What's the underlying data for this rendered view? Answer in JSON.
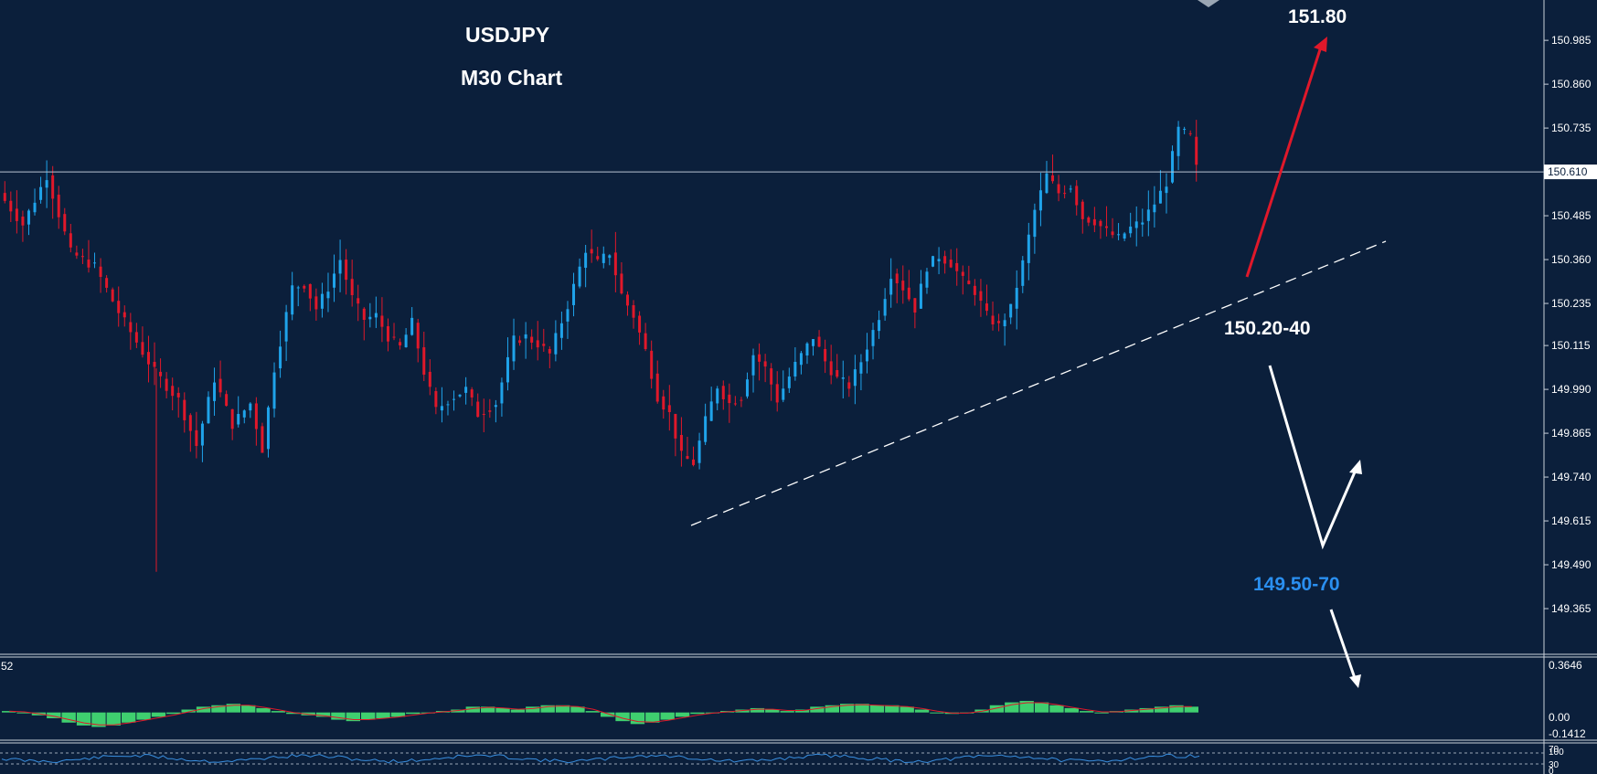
{
  "chart_data": {
    "type": "candlestick",
    "symbol": "USDJPY",
    "title": "USDJPY",
    "subtitle": "M30 Chart",
    "ylim": [
      149.24,
      151.1
    ],
    "price_axis_ticks": [
      "150.985",
      "150.860",
      "150.735",
      "150.485",
      "150.360",
      "150.235",
      "150.115",
      "149.990",
      "149.865",
      "149.740",
      "149.615",
      "149.490",
      "149.365"
    ],
    "current_price": "150.610",
    "current_price_value": 150.61,
    "annotations": {
      "target_up": "151.80",
      "support_zone": "150.20-40",
      "lower_zone": "149.50-70"
    },
    "colors": {
      "background": "#0b1f3b",
      "up": "#1fa3ea",
      "down": "#e0182a",
      "target_up_color": "#ffffff",
      "support_color": "#ffffff",
      "lower_color": "#2a8ff0",
      "red_arrow": "#e0182a",
      "white_arrow": "#ffffff",
      "histogram": "#3fcf6f",
      "signal": "#e0182a",
      "rsi_line": "#3a8fe0"
    },
    "price_path": [
      [
        0,
        150.55
      ],
      [
        4,
        150.46
      ],
      [
        8,
        150.6
      ],
      [
        12,
        150.38
      ],
      [
        16,
        150.34
      ],
      [
        20,
        150.21
      ],
      [
        26,
        150.04
      ],
      [
        30,
        149.96
      ],
      [
        33,
        149.83
      ],
      [
        36,
        150.02
      ],
      [
        39,
        149.89
      ],
      [
        42,
        149.95
      ],
      [
        44,
        149.82
      ],
      [
        46,
        150.05
      ],
      [
        49,
        150.28
      ],
      [
        51,
        150.29
      ],
      [
        53,
        150.22
      ],
      [
        55,
        150.28
      ],
      [
        57,
        150.36
      ],
      [
        59,
        150.25
      ],
      [
        61,
        150.19
      ],
      [
        63,
        150.2
      ],
      [
        65,
        150.14
      ],
      [
        67,
        150.11
      ],
      [
        69,
        150.18
      ],
      [
        71,
        150.04
      ],
      [
        73,
        149.93
      ],
      [
        75,
        149.96
      ],
      [
        78,
        149.99
      ],
      [
        80,
        149.92
      ],
      [
        83,
        149.95
      ],
      [
        86,
        150.13
      ],
      [
        88,
        150.14
      ],
      [
        90,
        150.12
      ],
      [
        92,
        150.09
      ],
      [
        95,
        150.23
      ],
      [
        98,
        150.39
      ],
      [
        100,
        150.35
      ],
      [
        102,
        150.38
      ],
      [
        104,
        150.26
      ],
      [
        106,
        150.2
      ],
      [
        108,
        150.1
      ],
      [
        110,
        149.97
      ],
      [
        112,
        149.92
      ],
      [
        114,
        149.8
      ],
      [
        116,
        149.78
      ],
      [
        118,
        149.9
      ],
      [
        120,
        150.0
      ],
      [
        122,
        149.95
      ],
      [
        124,
        149.97
      ],
      [
        126,
        150.09
      ],
      [
        128,
        150.05
      ],
      [
        130,
        149.96
      ],
      [
        133,
        150.06
      ],
      [
        136,
        150.14
      ],
      [
        138,
        150.07
      ],
      [
        140,
        150.02
      ],
      [
        142,
        150.0
      ],
      [
        144,
        150.07
      ],
      [
        147,
        150.2
      ],
      [
        149,
        150.32
      ],
      [
        151,
        150.28
      ],
      [
        153,
        150.22
      ],
      [
        155,
        150.34
      ],
      [
        157,
        150.37
      ],
      [
        159,
        150.35
      ],
      [
        161,
        150.3
      ],
      [
        163,
        150.27
      ],
      [
        165,
        150.2
      ],
      [
        167,
        150.17
      ],
      [
        169,
        150.22
      ],
      [
        171,
        150.35
      ],
      [
        173,
        150.5
      ],
      [
        175,
        150.6
      ],
      [
        177,
        150.55
      ],
      [
        179,
        150.57
      ],
      [
        181,
        150.48
      ],
      [
        183,
        150.47
      ],
      [
        185,
        150.44
      ],
      [
        187,
        150.42
      ],
      [
        189,
        150.45
      ],
      [
        191,
        150.47
      ],
      [
        193,
        150.52
      ],
      [
        195,
        150.58
      ],
      [
        197,
        150.73
      ],
      [
        199,
        150.71
      ],
      [
        200,
        150.62
      ]
    ],
    "macd_hist": [
      0.01,
      0.0,
      -0.02,
      -0.04,
      -0.07,
      -0.09,
      -0.1,
      -0.09,
      -0.07,
      -0.05,
      -0.03,
      -0.01,
      0.02,
      0.04,
      0.05,
      0.06,
      0.05,
      0.03,
      0.01,
      -0.01,
      -0.02,
      -0.03,
      -0.05,
      -0.06,
      -0.05,
      -0.04,
      -0.03,
      -0.01,
      0.0,
      0.01,
      0.02,
      0.04,
      0.04,
      0.03,
      0.02,
      0.04,
      0.05,
      0.05,
      0.04,
      0.01,
      -0.03,
      -0.06,
      -0.08,
      -0.07,
      -0.05,
      -0.03,
      -0.01,
      0.0,
      0.01,
      0.02,
      0.03,
      0.02,
      0.01,
      0.02,
      0.04,
      0.05,
      0.06,
      0.06,
      0.05,
      0.05,
      0.04,
      0.02,
      0.0,
      -0.01,
      0.0,
      0.02,
      0.05,
      0.07,
      0.08,
      0.07,
      0.05,
      0.03,
      0.01,
      0.0,
      0.01,
      0.02,
      0.03,
      0.04,
      0.05,
      0.04
    ],
    "oscillator": {
      "label": "52",
      "upper": "0.3646",
      "zero": "0.00",
      "lower": "-0.1412",
      "ylim": [
        -0.1412,
        0.3646
      ]
    },
    "rsi": {
      "label_100": "100",
      "label_70": "70",
      "label_30": "30",
      "label_0": "0"
    }
  }
}
